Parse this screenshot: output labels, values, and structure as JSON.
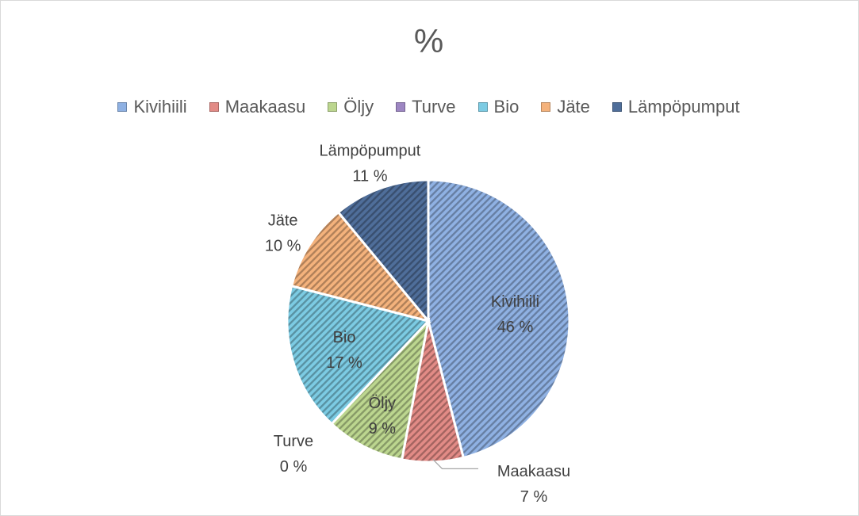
{
  "chart_data": {
    "type": "pie",
    "title": "%",
    "legend_position": "top",
    "categories": [
      "Kivihiili",
      "Maakaasu",
      "Öljy",
      "Turve",
      "Bio",
      "Jäte",
      "Lämpöpumput"
    ],
    "values": [
      46,
      7,
      9,
      0,
      17,
      10,
      11
    ],
    "data_labels": [
      "46 %",
      "7 %",
      "9 %",
      "0 %",
      "17 %",
      "10 %",
      "11 %"
    ],
    "colors": [
      "#8fb1e3",
      "#e28b86",
      "#bcd68f",
      "#9d86c2",
      "#7ccbe3",
      "#f4b27c",
      "#4f6e9a"
    ],
    "fill_pattern": "diagonal-hatch"
  }
}
